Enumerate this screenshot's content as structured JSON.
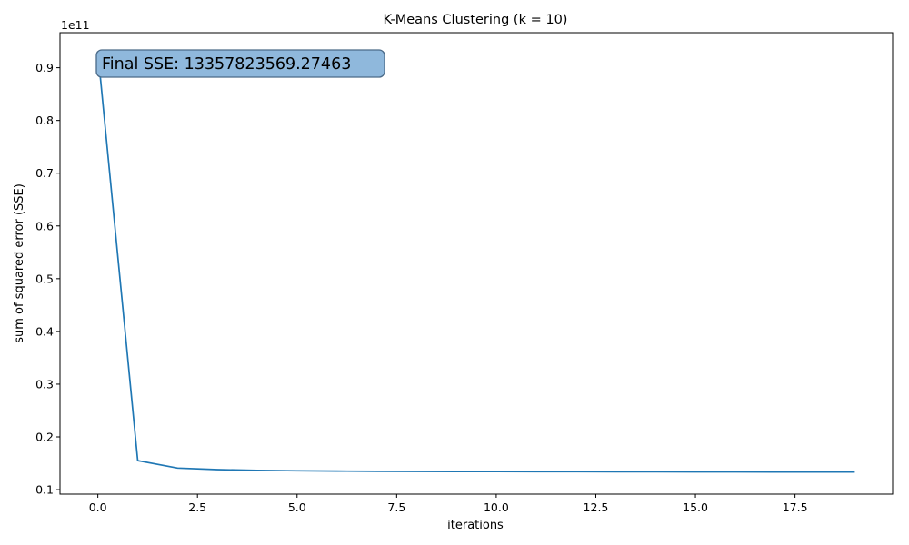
{
  "chart_data": {
    "type": "line",
    "title": "K-Means Clustering (k = 10)",
    "xlabel": "iterations",
    "ylabel": "sum of squared error (SSE)",
    "y_offset_label": "1e11",
    "xlim": [
      -0.95,
      19.95
    ],
    "ylim": [
      0.0915,
      0.9665
    ],
    "xticks": [
      0.0,
      2.5,
      5.0,
      7.5,
      10.0,
      12.5,
      15.0,
      17.5
    ],
    "xtick_labels": [
      "0.0",
      "2.5",
      "5.0",
      "7.5",
      "10.0",
      "12.5",
      "15.0",
      "17.5"
    ],
    "yticks": [
      0.1,
      0.2,
      0.3,
      0.4,
      0.5,
      0.6,
      0.7,
      0.8,
      0.9
    ],
    "ytick_labels": [
      "0.1",
      "0.2",
      "0.3",
      "0.4",
      "0.5",
      "0.6",
      "0.7",
      "0.8",
      "0.9"
    ],
    "grid": false,
    "line_color": "#1f77b4",
    "annotation": {
      "text": "Final SSE: 13357823569.27463",
      "placement": "top-left",
      "box_color": "#8fb8dc",
      "border_color": "#4a6a88"
    },
    "series": [
      {
        "x": [
          0,
          1,
          2,
          3,
          4,
          5,
          6,
          7,
          8,
          9,
          10,
          11,
          12,
          13,
          14,
          15,
          16,
          17,
          18,
          19
        ],
        "values": [
          0.931,
          0.155,
          0.141,
          0.138,
          0.1366,
          0.1358,
          0.1352,
          0.1348,
          0.1346,
          0.1344,
          0.1342,
          0.1341,
          0.134,
          0.1339,
          0.1338,
          0.1337,
          0.1337,
          0.1336,
          0.1336,
          0.1336
        ]
      }
    ]
  }
}
